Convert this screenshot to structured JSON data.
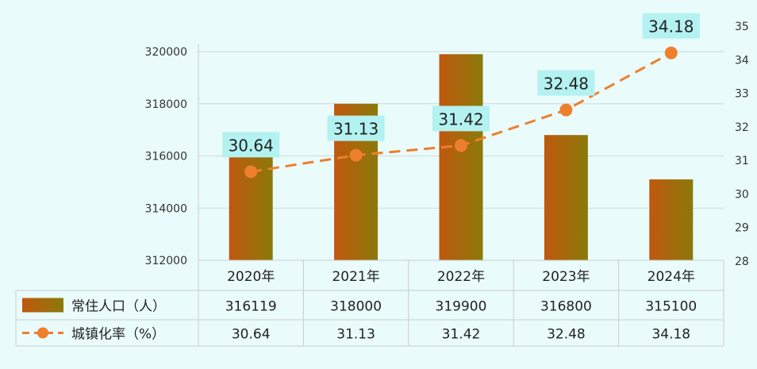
{
  "chart_data": {
    "type": "bar",
    "categories": [
      "2020年",
      "2021年",
      "2022年",
      "2023年",
      "2024年"
    ],
    "series": [
      {
        "name": "常住人口（人）",
        "type": "bar",
        "axis": "left",
        "values": [
          316119,
          318000,
          319900,
          316800,
          315100
        ],
        "color": "#c0580e"
      },
      {
        "name": "城镇化率（%）",
        "type": "line",
        "axis": "right",
        "values": [
          30.64,
          31.13,
          31.42,
          32.48,
          34.18
        ],
        "color": "#ee7f2d"
      }
    ],
    "data_labels": [
      "30.64",
      "31.13",
      "31.42",
      "32.48",
      "34.18"
    ],
    "y_left": {
      "min": 312000,
      "max": 320000,
      "ticks": [
        "312000",
        "314000",
        "316000",
        "318000",
        "320000"
      ]
    },
    "y_right": {
      "min": 28,
      "max": 35,
      "ticks": [
        "28",
        "29",
        "30",
        "31",
        "32",
        "33",
        "34",
        "35"
      ]
    },
    "table": {
      "rows": [
        {
          "label": "常住人口（人）",
          "values": [
            "316119",
            "318000",
            "319900",
            "316800",
            "315100"
          ]
        },
        {
          "label": "城镇化率（%）",
          "values": [
            "30.64",
            "31.13",
            "31.42",
            "32.48",
            "34.18"
          ]
        }
      ]
    },
    "grid": true,
    "legend": "data-table"
  },
  "colors": {
    "background": "#eafbfb",
    "bar_gradient_start": "#c0580e",
    "bar_gradient_end": "#8a7a0a",
    "line": "#ee7f2d",
    "label_box": "#b4f1f1",
    "grid": "#cfd9d9"
  }
}
